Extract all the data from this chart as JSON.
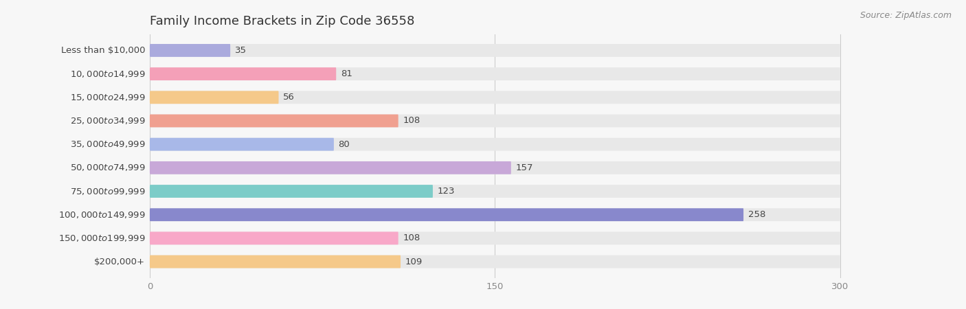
{
  "title": "Family Income Brackets in Zip Code 36558",
  "source": "Source: ZipAtlas.com",
  "categories": [
    "Less than $10,000",
    "$10,000 to $14,999",
    "$15,000 to $24,999",
    "$25,000 to $34,999",
    "$35,000 to $49,999",
    "$50,000 to $74,999",
    "$75,000 to $99,999",
    "$100,000 to $149,999",
    "$150,000 to $199,999",
    "$200,000+"
  ],
  "values": [
    35,
    81,
    56,
    108,
    80,
    157,
    123,
    258,
    108,
    109
  ],
  "bar_colors": [
    "#aaaadd",
    "#f4a0b8",
    "#f5c98a",
    "#f0a090",
    "#a8b8e8",
    "#c8a8d8",
    "#7cccc8",
    "#8888cc",
    "#f8a8c8",
    "#f5c98a"
  ],
  "xlim_max": 300,
  "xticks": [
    0,
    150,
    300
  ],
  "background_color": "#f7f7f7",
  "bar_bg_color": "#e8e8e8",
  "title_fontsize": 13,
  "label_fontsize": 9.5,
  "value_fontsize": 9.5,
  "source_fontsize": 9
}
